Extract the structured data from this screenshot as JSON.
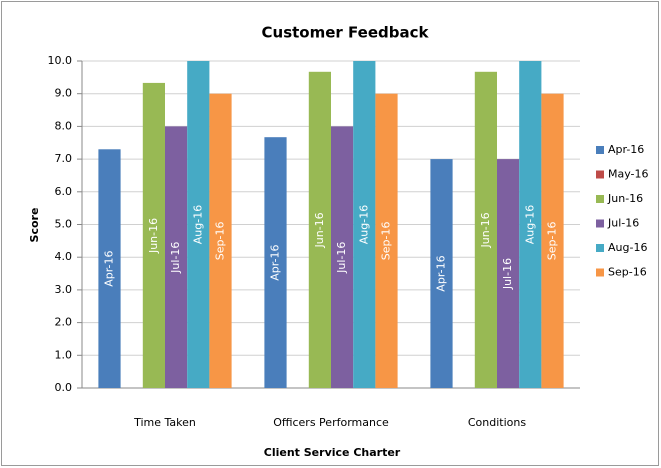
{
  "chart_data": {
    "type": "bar",
    "title": "Customer Feedback",
    "x_label": "Client Service Charter",
    "y_label": "Score",
    "categories": [
      "Time Taken",
      "Officers Performance",
      "Conditions"
    ],
    "series": [
      {
        "name": "Apr-16",
        "color": "#4a7ebb",
        "values": [
          7.3,
          7.67,
          7.0
        ]
      },
      {
        "name": "May-16",
        "color": "#be4b48",
        "values": [
          null,
          null,
          null
        ]
      },
      {
        "name": "Jun-16",
        "color": "#98b954",
        "values": [
          9.33,
          9.67,
          9.67
        ]
      },
      {
        "name": "Jul-16",
        "color": "#7d60a0",
        "values": [
          8.0,
          8.0,
          7.0
        ]
      },
      {
        "name": "Aug-16",
        "color": "#46aac5",
        "values": [
          10.0,
          10.0,
          10.0
        ]
      },
      {
        "name": "Sep-16",
        "color": "#f79646",
        "values": [
          9.0,
          9.0,
          9.0
        ]
      }
    ],
    "ylim": [
      0,
      10
    ],
    "yticks": [
      {
        "value": 0,
        "label": "0.0"
      },
      {
        "value": 1,
        "label": "1.0"
      },
      {
        "value": 2,
        "label": "2.0"
      },
      {
        "value": 3,
        "label": "3.0"
      },
      {
        "value": 4,
        "label": "4.0"
      },
      {
        "value": 5,
        "label": "5.0"
      },
      {
        "value": 6,
        "label": "6.0"
      },
      {
        "value": 7,
        "label": "7.0"
      },
      {
        "value": 8,
        "label": "8.0"
      },
      {
        "value": 9,
        "label": "9.0"
      },
      {
        "value": 10,
        "label": "10.0"
      }
    ],
    "grid": true,
    "legend": "right"
  }
}
